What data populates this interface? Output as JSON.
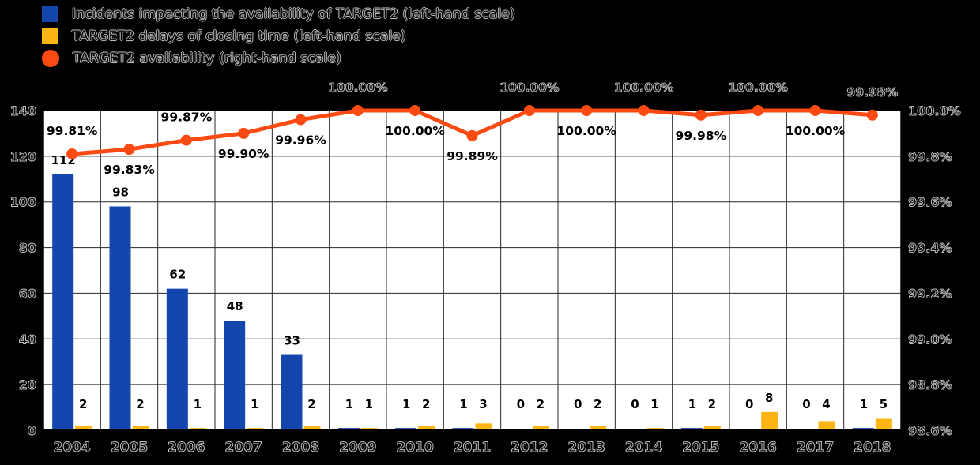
{
  "colors": {
    "background": "#000000",
    "plot_background": "#ffffff",
    "grid": "#262626",
    "frame": "#000000",
    "bar_incidents": "#1347ae",
    "bar_delays": "#fdb515",
    "line_availability": "#fb4a12",
    "text_on_plot": "#000000"
  },
  "legend": {
    "items": [
      {
        "id": "incidents",
        "swatch": "square",
        "color_key": "bar_incidents",
        "label": "Incidents impacting the availability of TARGET2 (left-hand scale)"
      },
      {
        "id": "delays",
        "swatch": "square",
        "color_key": "bar_delays",
        "label": "TARGET2 delays of closing time (left-hand scale)"
      },
      {
        "id": "availability",
        "swatch": "circle",
        "color_key": "line_availability",
        "label": "TARGET2 availability (right-hand scale)"
      }
    ]
  },
  "chart_data": {
    "type": "combo-bar-line",
    "categories": [
      "2004",
      "2005",
      "2006",
      "2007",
      "2008",
      "2009",
      "2010",
      "2011",
      "2012",
      "2013",
      "2014",
      "2015",
      "2016",
      "2017",
      "2018"
    ],
    "series": [
      {
        "name": "Incidents impacting the availability of TARGET2",
        "type": "bar",
        "axis": "left",
        "values": [
          112,
          98,
          62,
          48,
          33,
          1,
          1,
          1,
          0,
          0,
          0,
          1,
          0,
          0,
          1
        ]
      },
      {
        "name": "TARGET2 delays of closing time",
        "type": "bar",
        "axis": "left",
        "values": [
          2,
          2,
          1,
          1,
          2,
          1,
          2,
          3,
          2,
          2,
          1,
          2,
          8,
          4,
          5
        ]
      },
      {
        "name": "TARGET2 availability",
        "type": "line",
        "axis": "right",
        "values": [
          99.81,
          99.83,
          99.87,
          99.9,
          99.96,
          100.0,
          100.0,
          99.89,
          100.0,
          100.0,
          100.0,
          99.98,
          100.0,
          100.0,
          99.98
        ],
        "point_labels": [
          "99.81%",
          "99.83%",
          "99.87%",
          "99.90%",
          "99.96%",
          "100.00%",
          "100.00%",
          "99.89%",
          "100.00%",
          "100.00%",
          "100.00%",
          "99.98%",
          "100.00%",
          "100.00%",
          "99.98%"
        ],
        "label_placement": [
          "above",
          "below",
          "above",
          "below",
          "below",
          "above",
          "below",
          "below",
          "above",
          "below",
          "above",
          "below",
          "above",
          "below",
          "above"
        ]
      }
    ],
    "left_axis": {
      "min": 0,
      "max": 140,
      "ticks": [
        0,
        20,
        40,
        60,
        80,
        100,
        120,
        140
      ]
    },
    "right_axis": {
      "min": 98.6,
      "max": 100.0,
      "step": 0.2,
      "tick_labels": [
        "100.0%",
        "99.8%",
        "99.6%",
        "99.4%",
        "99.2%",
        "99.0%",
        "98.8%",
        "98.6%"
      ]
    },
    "grid": true,
    "legend_position": "top-left",
    "title": "",
    "xlabel": "",
    "ylabel": ""
  }
}
